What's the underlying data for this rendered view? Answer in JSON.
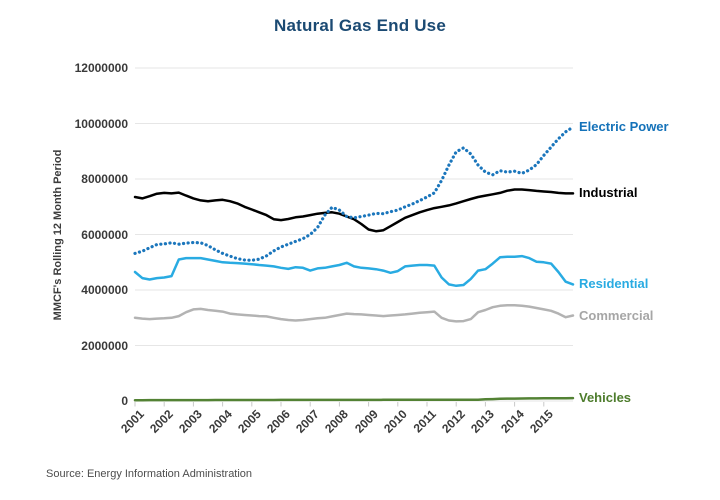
{
  "title": "Natural Gas End Use",
  "source_note": "Source: Energy Information Administration",
  "y_axis": {
    "title": "MMCF's Rolling 12 Month Period",
    "tick_labels": [
      "12000000",
      "10000000",
      "8000000",
      "6000000",
      "4000000",
      "2000000",
      "0"
    ],
    "tick_values": [
      12000000,
      10000000,
      8000000,
      6000000,
      4000000,
      2000000,
      0
    ]
  },
  "x_axis": {
    "tick_labels": [
      "2001",
      "2002",
      "2003",
      "2004",
      "2005",
      "2006",
      "2007",
      "2008",
      "2009",
      "2010",
      "2011",
      "2012",
      "2013",
      "2014",
      "2015"
    ],
    "tick_values": [
      2001,
      2002,
      2003,
      2004,
      2005,
      2006,
      2007,
      2008,
      2009,
      2010,
      2011,
      2012,
      2013,
      2014,
      2015
    ]
  },
  "colors": {
    "title": "#1b4a73",
    "grid": "#e6e6e6",
    "tick": "#c9c9c9",
    "axis_text": "#3a3a3a",
    "source": "#4d4d4d"
  },
  "chart_data": {
    "type": "line",
    "title": "Natural Gas End Use",
    "xlabel": "",
    "ylabel": "MMCF's Rolling 12 Month Period",
    "ylim": [
      0,
      12000000
    ],
    "xlim": [
      2001,
      2016
    ],
    "x_start": 2001,
    "x_step": 0.25,
    "grid": "horizontal",
    "legend_position": "right-of-line-ends",
    "series": [
      {
        "name": "Commercial",
        "color": "#b3b3b3",
        "label_color": "#a6a6a6",
        "style": "solid",
        "values": [
          3000000,
          2970000,
          2950000,
          2970000,
          2980000,
          3000000,
          3060000,
          3200000,
          3300000,
          3320000,
          3280000,
          3250000,
          3220000,
          3150000,
          3120000,
          3100000,
          3080000,
          3060000,
          3050000,
          3000000,
          2950000,
          2920000,
          2900000,
          2920000,
          2950000,
          2980000,
          3000000,
          3050000,
          3100000,
          3150000,
          3130000,
          3120000,
          3100000,
          3080000,
          3060000,
          3080000,
          3100000,
          3120000,
          3150000,
          3180000,
          3200000,
          3220000,
          3000000,
          2900000,
          2870000,
          2880000,
          2950000,
          3200000,
          3280000,
          3380000,
          3430000,
          3450000,
          3450000,
          3430000,
          3400000,
          3350000,
          3300000,
          3250000,
          3150000,
          3020000,
          3080000
        ]
      },
      {
        "name": "Vehicles",
        "color": "#538234",
        "label_color": "#4d7c2c",
        "style": "solid",
        "values": [
          30000,
          30000,
          31000,
          31000,
          32000,
          32000,
          33000,
          33000,
          33000,
          34000,
          34000,
          35000,
          35000,
          35000,
          36000,
          36000,
          36000,
          37000,
          37000,
          37000,
          38000,
          38000,
          38000,
          38000,
          39000,
          39000,
          39000,
          40000,
          40000,
          40000,
          40000,
          41000,
          41000,
          41000,
          42000,
          42000,
          42000,
          43000,
          43000,
          44000,
          44000,
          45000,
          45000,
          46000,
          46000,
          47000,
          47000,
          48000,
          60000,
          70000,
          80000,
          85000,
          88000,
          90000,
          92000,
          94000,
          96000,
          98000,
          100000,
          102000,
          105000
        ]
      },
      {
        "name": "Residential",
        "color": "#29abe2",
        "label_color": "#29abe2",
        "style": "solid",
        "values": [
          4650000,
          4430000,
          4380000,
          4430000,
          4450000,
          4500000,
          5100000,
          5150000,
          5150000,
          5150000,
          5100000,
          5050000,
          5000000,
          4980000,
          4970000,
          4950000,
          4930000,
          4900000,
          4880000,
          4850000,
          4800000,
          4760000,
          4820000,
          4800000,
          4700000,
          4780000,
          4800000,
          4850000,
          4900000,
          4980000,
          4850000,
          4800000,
          4780000,
          4750000,
          4700000,
          4620000,
          4680000,
          4850000,
          4880000,
          4900000,
          4900000,
          4880000,
          4450000,
          4200000,
          4150000,
          4180000,
          4400000,
          4700000,
          4750000,
          4950000,
          5180000,
          5200000,
          5200000,
          5220000,
          5150000,
          5020000,
          5000000,
          4950000,
          4650000,
          4300000,
          4200000
        ]
      },
      {
        "name": "Industrial",
        "color": "#000000",
        "label_color": "#000000",
        "style": "solid",
        "values": [
          7350000,
          7300000,
          7380000,
          7470000,
          7500000,
          7480000,
          7510000,
          7400000,
          7300000,
          7230000,
          7200000,
          7230000,
          7250000,
          7200000,
          7120000,
          7000000,
          6900000,
          6800000,
          6700000,
          6550000,
          6520000,
          6560000,
          6620000,
          6650000,
          6700000,
          6750000,
          6780000,
          6800000,
          6750000,
          6650000,
          6550000,
          6380000,
          6180000,
          6120000,
          6150000,
          6300000,
          6450000,
          6600000,
          6700000,
          6800000,
          6880000,
          6950000,
          7000000,
          7050000,
          7120000,
          7200000,
          7280000,
          7350000,
          7400000,
          7450000,
          7500000,
          7580000,
          7620000,
          7620000,
          7600000,
          7570000,
          7550000,
          7530000,
          7500000,
          7480000,
          7480000
        ]
      },
      {
        "name": "Electric Power",
        "color": "#1b76bc",
        "label_color": "#1472b9",
        "style": "dotted",
        "values": [
          5320000,
          5400000,
          5520000,
          5640000,
          5660000,
          5700000,
          5650000,
          5690000,
          5710000,
          5700000,
          5600000,
          5450000,
          5320000,
          5220000,
          5130000,
          5080000,
          5070000,
          5110000,
          5230000,
          5410000,
          5550000,
          5650000,
          5750000,
          5850000,
          6000000,
          6250000,
          6700000,
          6980000,
          6880000,
          6650000,
          6600000,
          6650000,
          6700000,
          6760000,
          6750000,
          6820000,
          6880000,
          7000000,
          7100000,
          7220000,
          7350000,
          7500000,
          7950000,
          8500000,
          8980000,
          9120000,
          8900000,
          8500000,
          8250000,
          8150000,
          8300000,
          8250000,
          8280000,
          8200000,
          8320000,
          8520000,
          8850000,
          9150000,
          9450000,
          9700000,
          9870000
        ]
      }
    ]
  }
}
